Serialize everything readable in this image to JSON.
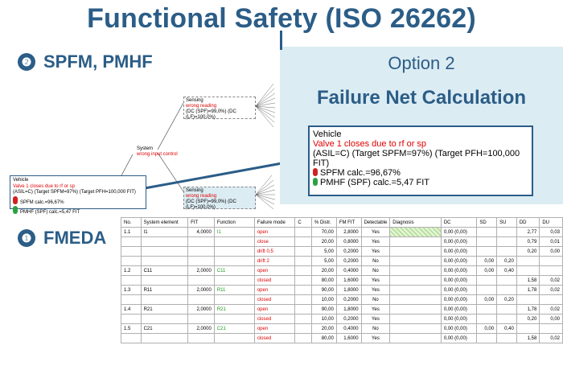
{
  "title": "Functional Safety (ISO 26262)",
  "sections": {
    "spfm": {
      "num": "❷",
      "label": "SPFM, PMHF"
    },
    "fmeda": {
      "num": "❶",
      "label": "FMEDA"
    }
  },
  "option": {
    "label": "Option 2",
    "heading": "Failure Net Calculation"
  },
  "zoom_box": {
    "title": "Vehicle",
    "failure": "Valve 1 closes due to rf or sp",
    "targets": "(ASIL=C) (Target SPFM=97%) (Target PFH=100,000 FIT)",
    "spfm": "SPFM calc.=96,67%",
    "pmhf": "PMHF (SPF) calc.=5,47 FIT"
  },
  "tree": {
    "vehicle": {
      "title": "Vehicle",
      "failure": "Valve 1 closes due to rf or sp",
      "targets": "(ASIL=C) (Target SPFM=97%) (Target PFH=100,000 FIT)",
      "spfm": "SPFM calc.=96,67%",
      "pmhf": "PMHF (SPF) calc.=5,47 FIT"
    },
    "system": {
      "title": "System",
      "failure": "wrong input control"
    },
    "sensing_top": {
      "title": "Sensing",
      "failure": "wrong reading",
      "dc": "(DC (SPF)=99,0%) (DC (LF)=100,0%)"
    },
    "sensing_bottom": {
      "title": "Sensing",
      "failure": "wrong reading",
      "dc": "(DC (SPF)=99,0%) (DC (LF)=100,0%)"
    }
  },
  "fmeda": {
    "headers": [
      "No.",
      "System element",
      "FIT",
      "Function",
      "Failure mode",
      "C",
      "% Distr.",
      "FM FIT",
      "Detectable",
      "Diagnosis",
      "DC",
      "SD",
      "SU",
      "DD",
      "DU"
    ],
    "rows": [
      {
        "no": "1.1",
        "element": "I1",
        "fit": "4,0000",
        "function": "I1",
        "mode": "open",
        "c": "",
        "distr": "70,00",
        "fmfit": "2,8000",
        "det": "Yes",
        "diag": "hatch",
        "dc": "0,00 (0,00)",
        "sd": "",
        "su": "",
        "dd": "2,77",
        "du": "0,03"
      },
      {
        "no": "",
        "element": "",
        "fit": "",
        "function": "",
        "mode": "close",
        "c": "",
        "distr": "20,00",
        "fmfit": "0,8000",
        "det": "Yes",
        "diag": "",
        "dc": "0,00 (0,00)",
        "sd": "",
        "su": "",
        "dd": "0,79",
        "du": "0,01"
      },
      {
        "no": "",
        "element": "",
        "fit": "",
        "function": "",
        "mode": "drift 0,5",
        "c": "",
        "distr": "5,00",
        "fmfit": "0,2000",
        "det": "Yes",
        "diag": "",
        "dc": "0,00 (0,00)",
        "sd": "",
        "su": "",
        "dd": "0,20",
        "du": "0,00"
      },
      {
        "no": "",
        "element": "",
        "fit": "",
        "function": "",
        "mode": "drift 2",
        "c": "",
        "distr": "5,00",
        "fmfit": "0,2000",
        "det": "No",
        "diag": "",
        "dc": "0,00 (0,00)",
        "sd": "0,00",
        "su": "0,20",
        "dd": "",
        "du": ""
      },
      {
        "no": "1.2",
        "element": "C11",
        "fit": "2,0000",
        "function": "C11",
        "mode": "open",
        "c": "",
        "distr": "20,00",
        "fmfit": "0,4000",
        "det": "No",
        "diag": "",
        "dc": "0,00 (0,00)",
        "sd": "0,00",
        "su": "0,40",
        "dd": "",
        "du": ""
      },
      {
        "no": "",
        "element": "",
        "fit": "",
        "function": "",
        "mode": "closed",
        "c": "",
        "distr": "80,00",
        "fmfit": "1,6000",
        "det": "Yes",
        "diag": "",
        "dc": "0,00 (0,00)",
        "sd": "",
        "su": "",
        "dd": "1,58",
        "du": "0,02"
      },
      {
        "no": "1.3",
        "element": "R11",
        "fit": "2,0000",
        "function": "R11",
        "mode": "open",
        "c": "",
        "distr": "90,00",
        "fmfit": "1,8000",
        "det": "Yes",
        "diag": "",
        "dc": "0,00 (0,00)",
        "sd": "",
        "su": "",
        "dd": "1,78",
        "du": "0,02"
      },
      {
        "no": "",
        "element": "",
        "fit": "",
        "function": "",
        "mode": "closed",
        "c": "",
        "distr": "10,00",
        "fmfit": "0,2000",
        "det": "No",
        "diag": "",
        "dc": "0,00 (0,00)",
        "sd": "0,00",
        "su": "0,20",
        "dd": "",
        "du": ""
      },
      {
        "no": "1.4",
        "element": "R21",
        "fit": "2,0000",
        "function": "R21",
        "mode": "open",
        "c": "",
        "distr": "90,00",
        "fmfit": "1,8000",
        "det": "Yes",
        "diag": "",
        "dc": "0,00 (0,00)",
        "sd": "",
        "su": "",
        "dd": "1,78",
        "du": "0,02"
      },
      {
        "no": "",
        "element": "",
        "fit": "",
        "function": "",
        "mode": "closed",
        "c": "",
        "distr": "10,00",
        "fmfit": "0,2000",
        "det": "Yes",
        "diag": "",
        "dc": "0,00 (0,00)",
        "sd": "",
        "su": "",
        "dd": "0,20",
        "du": "0,00"
      },
      {
        "no": "1.5",
        "element": "C21",
        "fit": "2,0000",
        "function": "C21",
        "mode": "open",
        "c": "",
        "distr": "20,00",
        "fmfit": "0,4000",
        "det": "No",
        "diag": "",
        "dc": "0,00 (0,00)",
        "sd": "0,00",
        "su": "0,40",
        "dd": "",
        "du": ""
      },
      {
        "no": "",
        "element": "",
        "fit": "",
        "function": "",
        "mode": "closed",
        "c": "",
        "distr": "80,00",
        "fmfit": "1,6000",
        "det": "Yes",
        "diag": "",
        "dc": "0,00 (0,00)",
        "sd": "",
        "su": "",
        "dd": "1,58",
        "du": "0,02"
      }
    ]
  }
}
